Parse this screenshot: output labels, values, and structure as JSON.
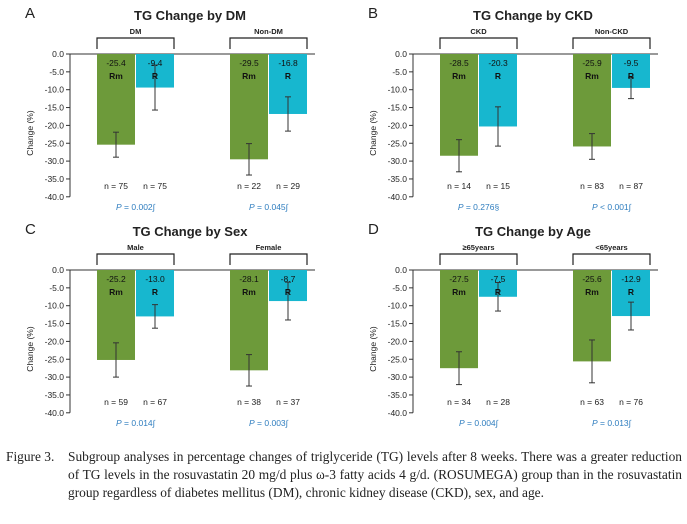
{
  "colors": {
    "rm": "#6d9a3a",
    "r": "#17b7cf",
    "pvalue": "#2e7dbf",
    "axis": "#333333"
  },
  "chart_data": [
    {
      "type": "bar",
      "panel_letter": "A",
      "title": "TG Change by DM",
      "ylabel": "Change (%)",
      "ylim": [
        -40,
        0
      ],
      "yticks": [
        "0.0",
        "-5.0",
        "-10.0",
        "-15.0",
        "-20.0",
        "-25.0",
        "-30.0",
        "-35.0",
        "-40.0"
      ],
      "groups": [
        {
          "name": "DM",
          "bars": [
            {
              "label": "Rm",
              "series": "rm",
              "value": -25.4,
              "value_label": "-25.4",
              "err": 3.5,
              "n": "n = 75"
            },
            {
              "label": "R",
              "series": "r",
              "value": -9.4,
              "value_label": "-9.4",
              "err": 6.3,
              "n": "n = 75"
            }
          ],
          "p": "0.002∫"
        },
        {
          "name": "Non-DM",
          "bars": [
            {
              "label": "Rm",
              "series": "rm",
              "value": -29.5,
              "value_label": "-29.5",
              "err": 4.4,
              "n": "n = 22"
            },
            {
              "label": "R",
              "series": "r",
              "value": -16.8,
              "value_label": "-16.8",
              "err": 4.8,
              "n": "n = 29"
            }
          ],
          "p": "0.045∫"
        }
      ]
    },
    {
      "type": "bar",
      "panel_letter": "B",
      "title": "TG Change by CKD",
      "ylabel": "Change (%)",
      "ylim": [
        -40,
        0
      ],
      "yticks": [
        "0.0",
        "-5.0",
        "-10.0",
        "-15.0",
        "-20.0",
        "-25.0",
        "-30.0",
        "-35.0",
        "-40.0"
      ],
      "groups": [
        {
          "name": "CKD",
          "bars": [
            {
              "label": "Rm",
              "series": "rm",
              "value": -28.5,
              "value_label": "-28.5",
              "err": 4.5,
              "n": "n = 14"
            },
            {
              "label": "R",
              "series": "r",
              "value": -20.3,
              "value_label": "-20.3",
              "err": 5.5,
              "n": "n = 15"
            }
          ],
          "p": "0.276§"
        },
        {
          "name": "Non-CKD",
          "bars": [
            {
              "label": "Rm",
              "series": "rm",
              "value": -25.9,
              "value_label": "-25.9",
              "err": 3.6,
              "n": "n = 83"
            },
            {
              "label": "R",
              "series": "r",
              "value": -9.5,
              "value_label": "-9.5",
              "err": 3.0,
              "n": "n = 87"
            }
          ],
          "p": "< 0.001∫"
        }
      ]
    },
    {
      "type": "bar",
      "panel_letter": "C",
      "title": "TG Change by Sex",
      "ylabel": "Change (%)",
      "ylim": [
        -40,
        0
      ],
      "yticks": [
        "0.0",
        "-5.0",
        "-10.0",
        "-15.0",
        "-20.0",
        "-25.0",
        "-30.0",
        "-35.0",
        "-40.0"
      ],
      "groups": [
        {
          "name": "Male",
          "bars": [
            {
              "label": "Rm",
              "series": "rm",
              "value": -25.2,
              "value_label": "-25.2",
              "err": 4.8,
              "n": "n = 59"
            },
            {
              "label": "R",
              "series": "r",
              "value": -13.0,
              "value_label": "-13.0",
              "err": 3.3,
              "n": "n = 67"
            }
          ],
          "p": "0.014∫"
        },
        {
          "name": "Female",
          "bars": [
            {
              "label": "Rm",
              "series": "rm",
              "value": -28.1,
              "value_label": "-28.1",
              "err": 4.4,
              "n": "n = 38"
            },
            {
              "label": "R",
              "series": "r",
              "value": -8.7,
              "value_label": "-8.7",
              "err": 5.3,
              "n": "n = 37"
            }
          ],
          "p": "0.003∫"
        }
      ]
    },
    {
      "type": "bar",
      "panel_letter": "D",
      "title": "TG Change by Age",
      "ylabel": "Change (%)",
      "ylim": [
        -40,
        0
      ],
      "yticks": [
        "0.0",
        "-5.0",
        "-10.0",
        "-15.0",
        "-20.0",
        "-25.0",
        "-30.0",
        "-35.0",
        "-40.0"
      ],
      "groups": [
        {
          "name": "≥65years",
          "bars": [
            {
              "label": "Rm",
              "series": "rm",
              "value": -27.5,
              "value_label": "-27.5",
              "err": 4.6,
              "n": "n = 34"
            },
            {
              "label": "R",
              "series": "r",
              "value": -7.5,
              "value_label": "-7.5",
              "err": 4.0,
              "n": "n = 28"
            }
          ],
          "p": "0.004∫"
        },
        {
          "name": "<65years",
          "bars": [
            {
              "label": "Rm",
              "series": "rm",
              "value": -25.6,
              "value_label": "-25.6",
              "err": 6.0,
              "n": "n = 63"
            },
            {
              "label": "R",
              "series": "r",
              "value": -12.9,
              "value_label": "-12.9",
              "err": 3.9,
              "n": "n = 76"
            }
          ],
          "p": "0.013∫"
        }
      ]
    }
  ],
  "caption": {
    "label": "Figure 3.",
    "text": "Subgroup analyses in percentage changes of triglyceride (TG) levels after 8 weeks. There was a greater reduction of TG levels in the rosuvastatin 20 mg/d plus ω-3 fatty acids 4 g/d. (ROSUMEGA) group than in the rosuvastatin group regardless of diabetes mellitus (DM), chronic kidney disease (CKD), sex, and age."
  }
}
